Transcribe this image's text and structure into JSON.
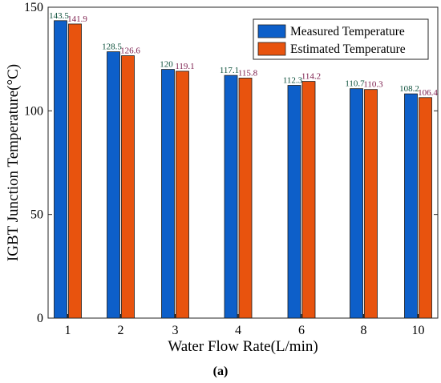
{
  "chart_data": {
    "type": "bar",
    "categories": [
      "1",
      "2",
      "3",
      "4",
      "6",
      "8",
      "10"
    ],
    "series": [
      {
        "name": "Measured Temperature",
        "values": [
          143.5,
          128.5,
          120,
          117.1,
          112.3,
          110.7,
          108.2
        ],
        "labels": [
          "143.5",
          "128.5",
          "120",
          "117.1",
          "112.3",
          "110.7",
          "108.2"
        ],
        "color": "#0d5fc9",
        "label_color": "#0b4f3a"
      },
      {
        "name": "Estimated Temperature",
        "values": [
          141.9,
          126.6,
          119.1,
          115.8,
          114.2,
          110.3,
          106.4
        ],
        "labels": [
          "141.9",
          "126.6",
          "119.1",
          "115.8",
          "114.2",
          "110.3",
          "106.4"
        ],
        "color": "#e8530e",
        "label_color": "#7a1a4a"
      }
    ],
    "xlabel": "Water Flow Rate(L/min)",
    "ylabel": "IGBT Junction Temperature(°C)",
    "ylim": [
      0,
      150
    ],
    "yticks": [
      "0",
      "50",
      "100",
      "150"
    ],
    "grid": false,
    "legend_position": "top-right"
  },
  "caption": "(a)"
}
